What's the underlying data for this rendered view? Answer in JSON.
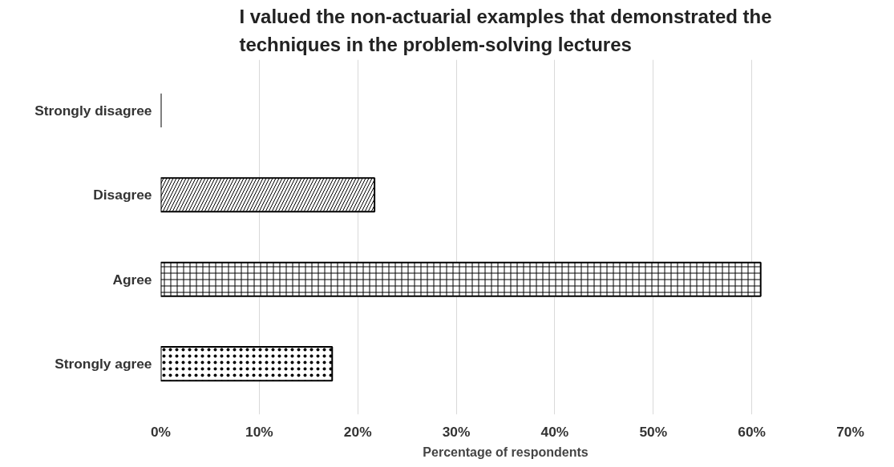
{
  "chart_data": {
    "type": "bar",
    "orientation": "horizontal",
    "title": "I valued the non-actuarial examples that demonstrated the\ntechniques in the problem-solving lectures",
    "xlabel": "Percentage of respondents",
    "categories": [
      "Strongly disagree",
      "Disagree",
      "Agree",
      "Strongly agree"
    ],
    "values": [
      0,
      21.7,
      60.9,
      17.4
    ],
    "color": "#000000",
    "xlim": [
      0,
      70
    ],
    "xticks": [
      {
        "value": 0,
        "label": "0%"
      },
      {
        "value": 10,
        "label": "10%"
      },
      {
        "value": 20,
        "label": "20%"
      },
      {
        "value": 30,
        "label": "30%"
      },
      {
        "value": 40,
        "label": "40%"
      },
      {
        "value": 50,
        "label": "50%"
      },
      {
        "value": 60,
        "label": "60%"
      },
      {
        "value": 70,
        "label": "70%"
      }
    ],
    "grid": "x"
  }
}
